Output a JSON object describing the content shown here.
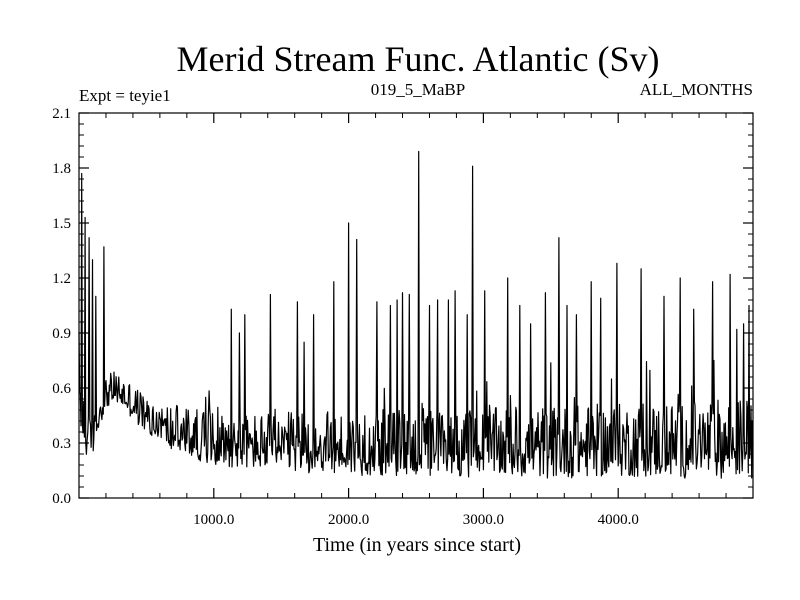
{
  "chart_data": {
    "type": "line",
    "title": "Merid Stream Func. Atlantic (Sv)",
    "header_left": "Expt = teyie1",
    "header_center": "019_5_MaBP",
    "header_right": "ALL_MONTHS",
    "xlabel": "Time (in years since start)",
    "ylabel": "",
    "xlim": [
      0,
      5000
    ],
    "ylim": [
      0.0,
      2.1
    ],
    "xticks": [
      1000,
      2000,
      3000,
      4000
    ],
    "xtick_labels": [
      "1000.0",
      "2000.0",
      "3000.0",
      "4000.0"
    ],
    "yticks": [
      0.0,
      0.3,
      0.6,
      0.9,
      1.2,
      1.5,
      1.8,
      2.1
    ],
    "ytick_labels": [
      "0.0",
      "0.3",
      "0.6",
      "0.9",
      "1.2",
      "1.5",
      "1.8",
      "2.1"
    ],
    "series": [
      {
        "name": "Merid Stream Func. Atlantic",
        "color": "#000000",
        "envelope": {
          "x": [
            0,
            50,
            100,
            150,
            200,
            250,
            300,
            400,
            500,
            600,
            800,
            1000,
            1200,
            1500,
            2000,
            2500,
            3000,
            3500,
            4000,
            4500,
            5000
          ],
          "mean": [
            0.55,
            0.32,
            0.3,
            0.45,
            0.55,
            0.58,
            0.57,
            0.5,
            0.42,
            0.37,
            0.32,
            0.29,
            0.27,
            0.26,
            0.25,
            0.25,
            0.25,
            0.25,
            0.26,
            0.26,
            0.27
          ],
          "noise_amplitude": [
            0.25,
            0.1,
            0.08,
            0.07,
            0.07,
            0.07,
            0.07,
            0.08,
            0.09,
            0.1,
            0.11,
            0.12,
            0.12,
            0.13,
            0.14,
            0.15,
            0.15,
            0.16,
            0.16,
            0.17,
            0.18
          ]
        },
        "spikes": [
          {
            "x": 20,
            "y": 1.77
          },
          {
            "x": 45,
            "y": 1.53
          },
          {
            "x": 75,
            "y": 1.42
          },
          {
            "x": 100,
            "y": 1.3
          },
          {
            "x": 125,
            "y": 1.1
          },
          {
            "x": 185,
            "y": 1.37
          },
          {
            "x": 1130,
            "y": 1.03
          },
          {
            "x": 1190,
            "y": 0.9
          },
          {
            "x": 1230,
            "y": 1.0
          },
          {
            "x": 1420,
            "y": 1.11
          },
          {
            "x": 1620,
            "y": 1.07
          },
          {
            "x": 1670,
            "y": 0.85
          },
          {
            "x": 1740,
            "y": 1.0
          },
          {
            "x": 1890,
            "y": 1.18
          },
          {
            "x": 2000,
            "y": 1.5
          },
          {
            "x": 2060,
            "y": 1.41
          },
          {
            "x": 2210,
            "y": 1.07
          },
          {
            "x": 2310,
            "y": 1.05
          },
          {
            "x": 2360,
            "y": 1.08
          },
          {
            "x": 2400,
            "y": 1.12
          },
          {
            "x": 2450,
            "y": 1.11
          },
          {
            "x": 2520,
            "y": 1.89
          },
          {
            "x": 2600,
            "y": 1.05
          },
          {
            "x": 2660,
            "y": 1.08
          },
          {
            "x": 2740,
            "y": 1.08
          },
          {
            "x": 2790,
            "y": 1.13
          },
          {
            "x": 2880,
            "y": 1.0
          },
          {
            "x": 2920,
            "y": 1.81
          },
          {
            "x": 3010,
            "y": 1.13
          },
          {
            "x": 3180,
            "y": 1.2
          },
          {
            "x": 3270,
            "y": 1.05
          },
          {
            "x": 3350,
            "y": 0.95
          },
          {
            "x": 3460,
            "y": 1.12
          },
          {
            "x": 3560,
            "y": 1.42
          },
          {
            "x": 3620,
            "y": 1.05
          },
          {
            "x": 3690,
            "y": 1.0
          },
          {
            "x": 3800,
            "y": 1.18
          },
          {
            "x": 3870,
            "y": 1.09
          },
          {
            "x": 3990,
            "y": 1.28
          },
          {
            "x": 4170,
            "y": 1.25
          },
          {
            "x": 4340,
            "y": 1.1
          },
          {
            "x": 4460,
            "y": 1.2
          },
          {
            "x": 4560,
            "y": 1.03
          },
          {
            "x": 4700,
            "y": 1.18
          },
          {
            "x": 4830,
            "y": 1.22
          },
          {
            "x": 4880,
            "y": 0.92
          },
          {
            "x": 4930,
            "y": 0.95
          },
          {
            "x": 4970,
            "y": 1.05
          }
        ]
      }
    ]
  }
}
